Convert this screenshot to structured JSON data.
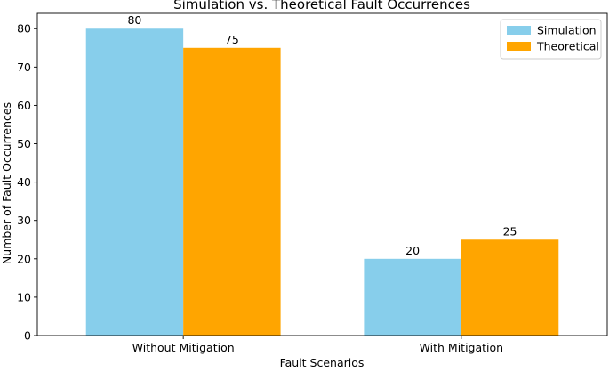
{
  "chart_data": {
    "type": "bar",
    "title": "Simulation vs. Theoretical Fault Occurrences",
    "xlabel": "Fault Scenarios",
    "ylabel": "Number of Fault Occurrences",
    "categories": [
      "Without Mitigation",
      "With Mitigation"
    ],
    "series": [
      {
        "name": "Simulation",
        "values": [
          80,
          20
        ],
        "color": "#87ceeb"
      },
      {
        "name": "Theoretical",
        "values": [
          75,
          25
        ],
        "color": "#ffa500"
      }
    ],
    "ylim": [
      0,
      84
    ],
    "yticks": [
      0,
      10,
      20,
      30,
      40,
      50,
      60,
      70,
      80
    ],
    "data_labels": true,
    "legend_position": "top-right",
    "grid": false
  }
}
